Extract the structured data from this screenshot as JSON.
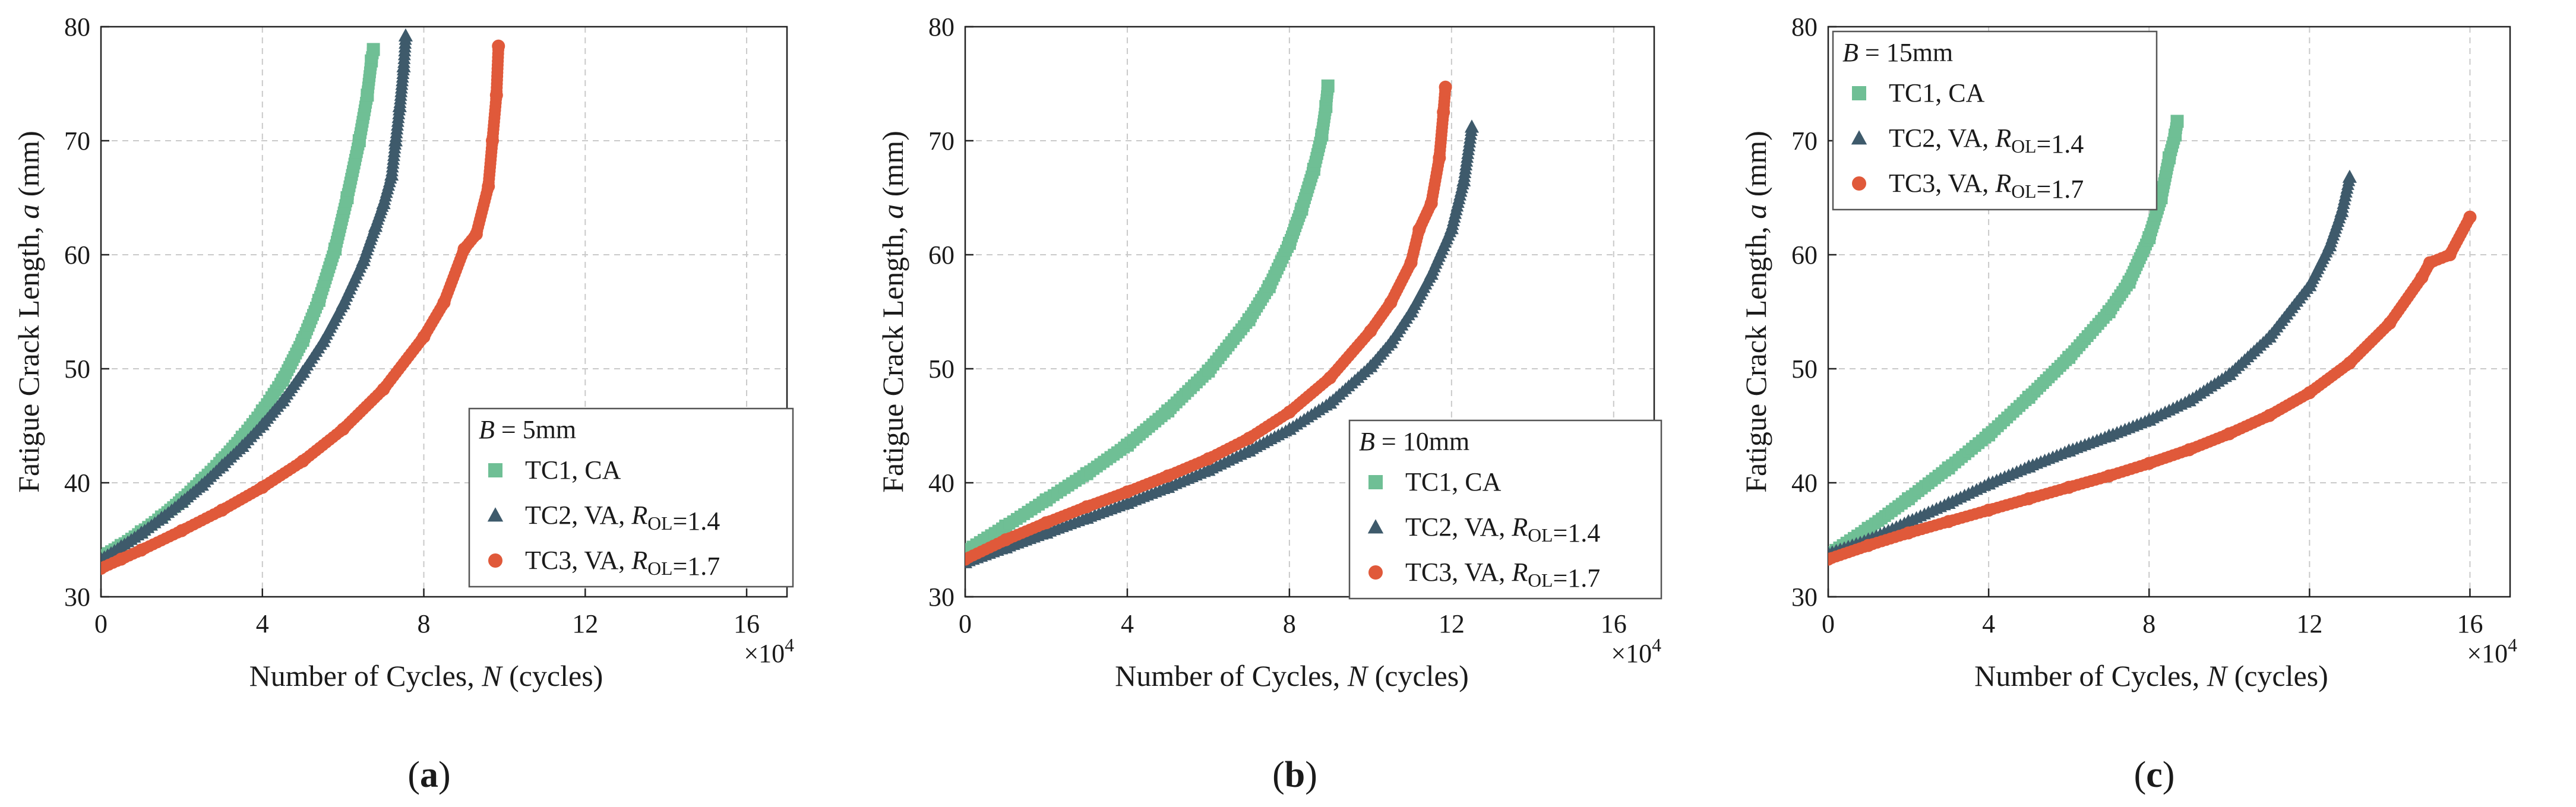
{
  "colors": {
    "TC1": "#6fbf95",
    "TC2": "#3e5a6b",
    "TC3": "#e0593a",
    "grid": "#c9c9c9"
  },
  "chart_data": [
    {
      "type": "scatter",
      "panel_label": "(a)",
      "xlabel": "Number of Cycles, N (cycles)",
      "ylabel": "Fatigue Crack Length, a (mm)",
      "x_multiplier": "×10^4",
      "xlim": [
        0,
        17
      ],
      "ylim": [
        30,
        80
      ],
      "xticks": [
        0,
        4,
        8,
        12,
        16
      ],
      "yticks": [
        30,
        40,
        50,
        60,
        70,
        80
      ],
      "grid": true,
      "legend_position": "bottom-right",
      "legend_title": "B = 5mm",
      "series": [
        {
          "name": "TC1, CA",
          "marker": "square",
          "color_key": "TC1",
          "x": [
            0,
            0.5,
            1,
            1.5,
            2,
            2.5,
            3,
            3.5,
            4,
            4.5,
            5,
            5.4,
            5.8,
            6.1,
            6.4,
            6.6,
            6.7,
            6.75
          ],
          "y": [
            33.5,
            34.5,
            35.7,
            37,
            38.5,
            40.2,
            42,
            44,
            46.3,
            49,
            52.5,
            56,
            60.5,
            65,
            70,
            74,
            77,
            78
          ]
        },
        {
          "name": "TC2, VA, R_OL=1.4",
          "marker": "triangle",
          "color_key": "TC2",
          "x": [
            0,
            0.5,
            1,
            1.5,
            2,
            2.5,
            3,
            3.5,
            4,
            4.5,
            5,
            5.5,
            6,
            6.5,
            6.8,
            7,
            7.2,
            7.3,
            7.4,
            7.5,
            7.55
          ],
          "y": [
            33.3,
            34.4,
            35.6,
            36.9,
            38.3,
            39.8,
            41.5,
            43.2,
            45.1,
            47.2,
            49.7,
            52.4,
            55.7,
            59.5,
            62.5,
            64.5,
            67,
            70,
            73,
            76.5,
            79.2
          ]
        },
        {
          "name": "TC3, VA, R_OL=1.7",
          "marker": "circle",
          "color_key": "TC3",
          "x": [
            0,
            0.5,
            1,
            2,
            3,
            4,
            5,
            6,
            7,
            8,
            8.5,
            9,
            9.3,
            9.6,
            9.7,
            9.8,
            9.85
          ],
          "y": [
            32.5,
            33.3,
            34.1,
            35.8,
            37.6,
            39.6,
            41.9,
            44.7,
            48.2,
            52.8,
            55.8,
            60.5,
            61.8,
            66,
            70,
            74,
            78.3
          ]
        }
      ]
    },
    {
      "type": "scatter",
      "panel_label": "(b)",
      "xlabel": "Number of Cycles, N (cycles)",
      "ylabel": "Fatigue Crack Length, a (mm)",
      "x_multiplier": "×10^4",
      "xlim": [
        0,
        17
      ],
      "ylim": [
        30,
        80
      ],
      "xticks": [
        0,
        4,
        8,
        12,
        16
      ],
      "yticks": [
        30,
        40,
        50,
        60,
        70,
        80
      ],
      "grid": true,
      "legend_position": "bottom-right",
      "legend_title": "B = 10mm",
      "series": [
        {
          "name": "TC1, CA",
          "marker": "square",
          "color_key": "TC1",
          "x": [
            0,
            1,
            2,
            3,
            4,
            5,
            6,
            7,
            7.5,
            8,
            8.3,
            8.6,
            8.8,
            8.9,
            8.95
          ],
          "y": [
            34,
            36.2,
            38.5,
            40.8,
            43.3,
            46.3,
            49.8,
            54.3,
            57.2,
            61,
            64,
            67.5,
            70.5,
            73,
            74.8
          ]
        },
        {
          "name": "TC2, VA, R_OL=1.4",
          "marker": "triangle",
          "color_key": "TC2",
          "x": [
            0,
            1,
            2,
            3,
            4,
            5,
            6,
            7,
            8,
            9,
            10,
            10.5,
            11,
            11.5,
            12,
            12.3,
            12.5
          ],
          "y": [
            33,
            34.3,
            35.6,
            36.9,
            38.2,
            39.6,
            41.1,
            42.8,
            44.7,
            47,
            50.2,
            52.3,
            55,
            58.3,
            62.3,
            66.5,
            71.2
          ]
        },
        {
          "name": "TC3, VA, R_OL=1.7",
          "marker": "circle",
          "color_key": "TC3",
          "x": [
            0,
            1,
            2,
            3,
            4,
            5,
            6,
            7,
            8,
            9,
            10,
            10.5,
            11,
            11.2,
            11.5,
            11.7,
            11.8,
            11.85
          ],
          "y": [
            33.3,
            35,
            36.5,
            37.9,
            39.2,
            40.6,
            42.1,
            43.9,
            46.2,
            49.2,
            53.3,
            55.8,
            59.3,
            62.2,
            64.5,
            68.5,
            72.5,
            74.7
          ]
        }
      ]
    },
    {
      "type": "scatter",
      "panel_label": "(c)",
      "xlabel": "Number of Cycles, N (cycles)",
      "ylabel": "Fatigue Crack Length, a (mm)",
      "x_multiplier": "×10^4",
      "xlim": [
        0,
        17
      ],
      "ylim": [
        30,
        80
      ],
      "xticks": [
        0,
        4,
        8,
        12,
        16
      ],
      "yticks": [
        30,
        40,
        50,
        60,
        70,
        80
      ],
      "grid": true,
      "legend_position": "top-left",
      "legend_title": "B = 15mm",
      "series": [
        {
          "name": "TC1, CA",
          "marker": "square",
          "color_key": "TC1",
          "x": [
            0,
            1,
            2,
            3,
            4,
            5,
            6,
            7,
            7.5,
            8,
            8.3,
            8.5,
            8.65,
            8.7
          ],
          "y": [
            33.7,
            36,
            38.6,
            41.3,
            44.2,
            47.5,
            51,
            55,
            57.6,
            61.5,
            65,
            68.5,
            70.5,
            71.7
          ]
        },
        {
          "name": "TC2, VA, R_OL=1.4",
          "marker": "triangle",
          "color_key": "TC2",
          "x": [
            0,
            1,
            2,
            3,
            4,
            5,
            6,
            7,
            8,
            9,
            10,
            11,
            12,
            12.5,
            12.8,
            13
          ],
          "y": [
            33.8,
            35,
            36.6,
            38.2,
            39.9,
            41.4,
            42.8,
            44.1,
            45.5,
            47.2,
            49.5,
            52.8,
            57.3,
            60.8,
            63.8,
            66.8
          ]
        },
        {
          "name": "TC3, VA, R_OL=1.7",
          "marker": "circle",
          "color_key": "TC3",
          "x": [
            0,
            1,
            2,
            3,
            4,
            5,
            6,
            7,
            8,
            9,
            10,
            11,
            12,
            13,
            14,
            14.8,
            15,
            15.5,
            16
          ],
          "y": [
            33.3,
            34.5,
            35.6,
            36.6,
            37.6,
            38.6,
            39.6,
            40.6,
            41.7,
            42.9,
            44.3,
            45.9,
            47.9,
            50.5,
            54,
            58,
            59.3,
            60,
            63.3
          ]
        }
      ]
    }
  ]
}
